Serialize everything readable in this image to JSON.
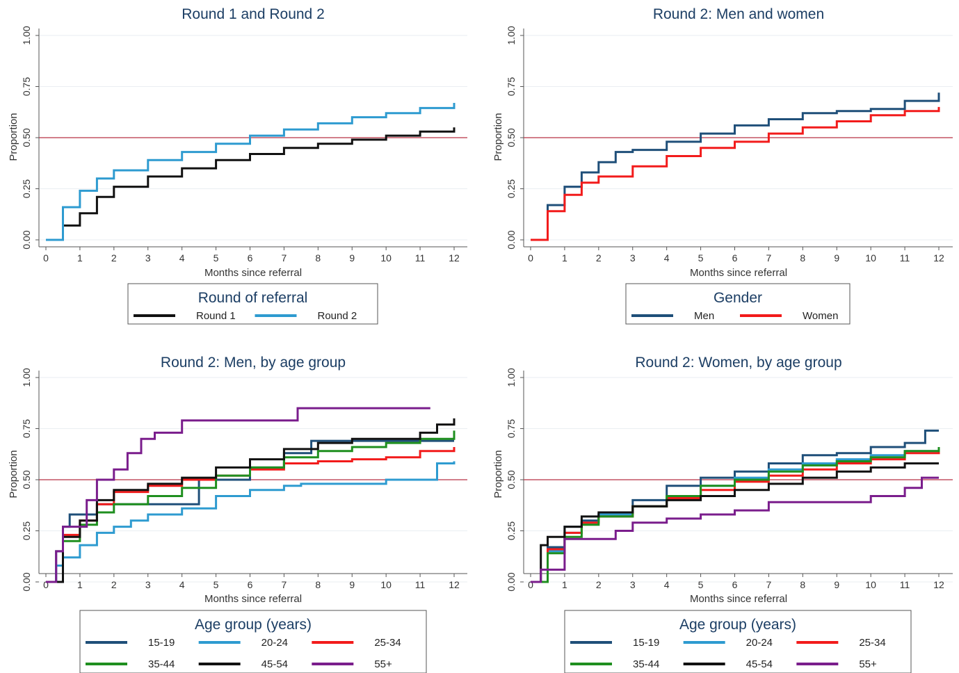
{
  "chart_data": [
    {
      "type": "line",
      "title": "Round 1 and Round 2",
      "xlabel": "Months since referral",
      "ylabel": "Proportion",
      "xlim": [
        0,
        12
      ],
      "ylim": [
        0,
        1
      ],
      "xticks": [
        "0",
        "1",
        "2",
        "3",
        "4",
        "5",
        "6",
        "7",
        "8",
        "9",
        "10",
        "11",
        "12"
      ],
      "yticks": [
        "0.00",
        "0.25",
        "0.50",
        "0.75",
        "1.00"
      ],
      "reference_line_y": 0.5,
      "grid": true,
      "legend": {
        "title": "Round of referral",
        "columns": 2,
        "placement": "below"
      },
      "series": [
        {
          "name": "Round 1",
          "color": "#111111",
          "x": [
            0,
            0.5,
            1,
            1.5,
            2,
            3,
            4,
            5,
            6,
            7,
            8,
            9,
            10,
            11,
            12
          ],
          "y": [
            0,
            0.07,
            0.13,
            0.21,
            0.26,
            0.31,
            0.35,
            0.39,
            0.42,
            0.45,
            0.47,
            0.49,
            0.51,
            0.53,
            0.55
          ]
        },
        {
          "name": "Round 2",
          "color": "#2e9bd0",
          "x": [
            0,
            0.5,
            1,
            1.5,
            2,
            3,
            4,
            5,
            6,
            7,
            8,
            9,
            10,
            11,
            12
          ],
          "y": [
            0,
            0.16,
            0.24,
            0.3,
            0.34,
            0.39,
            0.43,
            0.47,
            0.51,
            0.54,
            0.57,
            0.6,
            0.62,
            0.645,
            0.67
          ]
        }
      ]
    },
    {
      "type": "line",
      "title": "Round 2: Men and women",
      "xlabel": "Months since referral",
      "ylabel": "Proportion",
      "xlim": [
        0,
        12
      ],
      "ylim": [
        0,
        1
      ],
      "xticks": [
        "0",
        "1",
        "2",
        "3",
        "4",
        "5",
        "6",
        "7",
        "8",
        "9",
        "10",
        "11",
        "12"
      ],
      "yticks": [
        "0.00",
        "0.25",
        "0.50",
        "0.75",
        "1.00"
      ],
      "reference_line_y": 0.5,
      "grid": true,
      "legend": {
        "title": "Gender",
        "columns": 2,
        "placement": "below"
      },
      "series": [
        {
          "name": "Men",
          "color": "#1f4f79",
          "x": [
            0,
            0.5,
            1,
            1.5,
            2,
            2.5,
            3,
            4,
            5,
            6,
            7,
            8,
            9,
            10,
            11,
            12
          ],
          "y": [
            0,
            0.17,
            0.26,
            0.33,
            0.38,
            0.43,
            0.44,
            0.48,
            0.52,
            0.56,
            0.59,
            0.62,
            0.63,
            0.64,
            0.68,
            0.72
          ]
        },
        {
          "name": "Women",
          "color": "#f21b1b",
          "x": [
            0,
            0.5,
            1,
            1.5,
            2,
            3,
            4,
            5,
            6,
            7,
            8,
            9,
            10,
            11,
            12
          ],
          "y": [
            0,
            0.14,
            0.22,
            0.28,
            0.31,
            0.36,
            0.41,
            0.45,
            0.48,
            0.52,
            0.55,
            0.58,
            0.61,
            0.63,
            0.65
          ]
        }
      ]
    },
    {
      "type": "line",
      "title": "Round 2: Men, by age group",
      "xlabel": "Months since referral",
      "ylabel": "Proportion",
      "xlim": [
        0,
        12
      ],
      "ylim": [
        0,
        1
      ],
      "xticks": [
        "0",
        "1",
        "2",
        "3",
        "4",
        "5",
        "6",
        "7",
        "8",
        "9",
        "10",
        "11",
        "12"
      ],
      "yticks": [
        "0.00",
        "0.25",
        "0.50",
        "0.75",
        "1.00"
      ],
      "reference_line_y": 0.5,
      "grid": true,
      "legend": {
        "title": "Age group (years)",
        "columns": 3,
        "placement": "below"
      },
      "series": [
        {
          "name": "15-19",
          "color": "#1f4f79",
          "x": [
            0,
            0.3,
            0.5,
            0.7,
            1,
            1.5,
            2,
            3,
            4,
            4.5,
            5,
            6,
            7,
            7.8,
            8,
            9,
            10,
            11,
            12
          ],
          "y": [
            0,
            0.15,
            0.27,
            0.33,
            0.33,
            0.38,
            0.38,
            0.38,
            0.38,
            0.5,
            0.5,
            0.56,
            0.63,
            0.69,
            0.69,
            0.69,
            0.69,
            0.69,
            0.69
          ]
        },
        {
          "name": "20-24",
          "color": "#2e9bd0",
          "x": [
            0,
            0.3,
            0.5,
            1,
            1.5,
            2,
            2.5,
            3,
            4,
            5,
            6,
            7,
            7.5,
            8,
            9,
            10,
            11,
            11.3,
            11.5,
            12
          ],
          "y": [
            0,
            0.08,
            0.12,
            0.18,
            0.24,
            0.27,
            0.3,
            0.33,
            0.36,
            0.42,
            0.45,
            0.47,
            0.48,
            0.48,
            0.48,
            0.5,
            0.5,
            0.5,
            0.58,
            0.59
          ]
        },
        {
          "name": "25-34",
          "color": "#f21b1b",
          "x": [
            0,
            0.5,
            1,
            1.5,
            2,
            3,
            4,
            5,
            6,
            7,
            8,
            9,
            10,
            11,
            12
          ],
          "y": [
            0,
            0.23,
            0.3,
            0.38,
            0.44,
            0.47,
            0.5,
            0.52,
            0.55,
            0.58,
            0.59,
            0.6,
            0.61,
            0.64,
            0.66
          ]
        },
        {
          "name": "35-44",
          "color": "#1f8f1f",
          "x": [
            0,
            0.5,
            1,
            1.5,
            2,
            3,
            4,
            5,
            6,
            7,
            8,
            9,
            10,
            11,
            12
          ],
          "y": [
            0,
            0.2,
            0.28,
            0.34,
            0.38,
            0.42,
            0.46,
            0.52,
            0.56,
            0.61,
            0.64,
            0.66,
            0.68,
            0.7,
            0.74
          ]
        },
        {
          "name": "45-54",
          "color": "#111111",
          "x": [
            0,
            0.5,
            1,
            1.5,
            2,
            3,
            4,
            5,
            6,
            7,
            8,
            9,
            10,
            11,
            11.5,
            12
          ],
          "y": [
            0,
            0.22,
            0.3,
            0.4,
            0.45,
            0.48,
            0.51,
            0.56,
            0.6,
            0.65,
            0.68,
            0.7,
            0.7,
            0.73,
            0.77,
            0.8
          ]
        },
        {
          "name": "55+",
          "color": "#7a1d8c",
          "x": [
            0,
            0.3,
            0.5,
            0.8,
            1,
            1.2,
            1.5,
            2,
            2.4,
            2.8,
            3.2,
            3.5,
            4,
            4.5,
            5,
            6,
            7,
            7.4,
            8,
            9,
            10,
            11,
            11.3
          ],
          "y": [
            0,
            0.15,
            0.27,
            0.27,
            0.27,
            0.4,
            0.5,
            0.55,
            0.63,
            0.7,
            0.73,
            0.73,
            0.79,
            0.79,
            0.79,
            0.79,
            0.79,
            0.85,
            0.85,
            0.85,
            0.85,
            0.85,
            0.85
          ]
        }
      ]
    },
    {
      "type": "line",
      "title": "Round 2: Women, by age group",
      "xlabel": "Months since referral",
      "ylabel": "Proportion",
      "xlim": [
        0,
        12
      ],
      "ylim": [
        0,
        1
      ],
      "xticks": [
        "0",
        "1",
        "2",
        "3",
        "4",
        "5",
        "6",
        "7",
        "8",
        "9",
        "10",
        "11",
        "12"
      ],
      "yticks": [
        "0.00",
        "0.25",
        "0.50",
        "0.75",
        "1.00"
      ],
      "reference_line_y": 0.5,
      "grid": true,
      "legend": {
        "title": "Age group (years)",
        "columns": 3,
        "placement": "below"
      },
      "series": [
        {
          "name": "15-19",
          "color": "#1f4f79",
          "x": [
            0,
            0.5,
            1,
            1.5,
            2,
            3,
            4,
            5,
            6,
            7,
            8,
            9,
            10,
            11,
            11.6,
            12
          ],
          "y": [
            0,
            0.17,
            0.27,
            0.3,
            0.33,
            0.4,
            0.47,
            0.51,
            0.54,
            0.58,
            0.62,
            0.63,
            0.66,
            0.68,
            0.74,
            0.74
          ]
        },
        {
          "name": "20-24",
          "color": "#2e9bd0",
          "x": [
            0,
            0.5,
            1,
            1.5,
            2,
            3,
            4,
            5,
            6,
            7,
            8,
            9,
            10,
            11,
            12
          ],
          "y": [
            0,
            0.15,
            0.24,
            0.29,
            0.33,
            0.37,
            0.42,
            0.47,
            0.51,
            0.55,
            0.58,
            0.6,
            0.62,
            0.64,
            0.66
          ]
        },
        {
          "name": "25-34",
          "color": "#f21b1b",
          "x": [
            0,
            0.5,
            1,
            1.5,
            2,
            3,
            4,
            5,
            6,
            7,
            8,
            9,
            10,
            11,
            12
          ],
          "y": [
            0,
            0.16,
            0.24,
            0.29,
            0.32,
            0.37,
            0.41,
            0.45,
            0.49,
            0.52,
            0.55,
            0.58,
            0.6,
            0.63,
            0.66
          ]
        },
        {
          "name": "35-44",
          "color": "#1f8f1f",
          "x": [
            0,
            0.5,
            1,
            1.5,
            2,
            3,
            4,
            5,
            6,
            7,
            8,
            9,
            10,
            11,
            12
          ],
          "y": [
            0,
            0.14,
            0.22,
            0.28,
            0.32,
            0.37,
            0.42,
            0.47,
            0.5,
            0.54,
            0.57,
            0.59,
            0.61,
            0.64,
            0.66
          ]
        },
        {
          "name": "45-54",
          "color": "#111111",
          "x": [
            0,
            0.3,
            0.5,
            1,
            1.5,
            2,
            3,
            4,
            5,
            6,
            7,
            8,
            9,
            10,
            11,
            12
          ],
          "y": [
            0,
            0.18,
            0.22,
            0.27,
            0.32,
            0.34,
            0.37,
            0.4,
            0.42,
            0.45,
            0.48,
            0.51,
            0.54,
            0.56,
            0.58,
            0.58
          ]
        },
        {
          "name": "55+",
          "color": "#7a1d8c",
          "x": [
            0,
            0.3,
            0.5,
            1,
            1.5,
            2,
            2.5,
            3,
            4,
            5,
            6,
            7,
            8,
            9,
            10,
            11,
            11.5,
            12
          ],
          "y": [
            0,
            0.06,
            0.06,
            0.21,
            0.21,
            0.21,
            0.25,
            0.29,
            0.31,
            0.33,
            0.35,
            0.39,
            0.39,
            0.39,
            0.42,
            0.46,
            0.51,
            0.51
          ]
        }
      ]
    }
  ]
}
